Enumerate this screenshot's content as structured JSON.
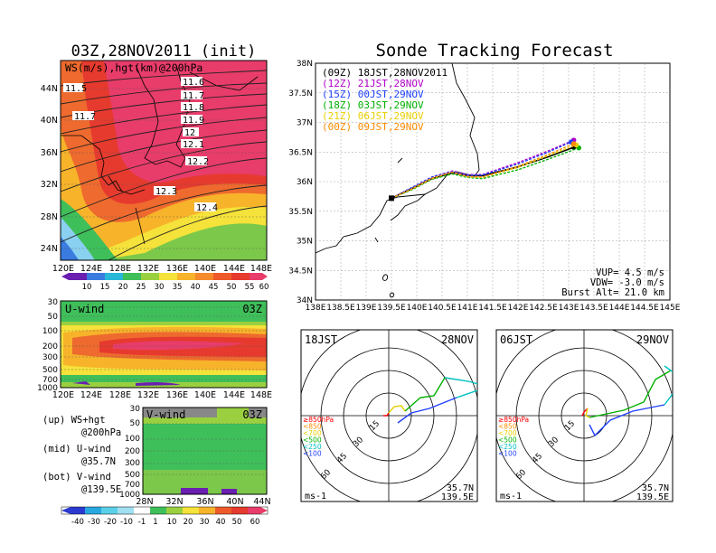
{
  "titles": {
    "left": "03Z,28NOV2011 (init)",
    "right": "Sonde Tracking Forecast"
  },
  "map": {
    "panel_label": "WS(m/s),hgt(km)@200hPa",
    "lat_labels": [
      "44N",
      "40N",
      "36N",
      "32N",
      "28N",
      "24N"
    ],
    "lon_labels": [
      "120E",
      "124E",
      "128E",
      "132E",
      "136E",
      "140E",
      "144E",
      "148E"
    ],
    "contour_labels": [
      "11.5",
      "11.6",
      "11.7",
      "11.8",
      "11.9",
      "12",
      "12.1",
      "12.2",
      "12.3",
      "12.4",
      "11.7",
      "12.3"
    ],
    "colorbar_ticks": [
      "10",
      "15",
      "20",
      "25",
      "30",
      "35",
      "40",
      "45",
      "50",
      "55",
      "60"
    ]
  },
  "uwind": {
    "label": "U-wind",
    "time": "03Z",
    "y_ticks": [
      "30",
      "50",
      "100",
      "200",
      "300",
      "500",
      "700",
      "1000"
    ],
    "x_ticks": [
      "120E",
      "124E",
      "128E",
      "132E",
      "136E",
      "140E",
      "144E",
      "148E"
    ]
  },
  "vwind": {
    "label": "V-wind",
    "time": "03Z",
    "y_ticks": [
      "30",
      "50",
      "100",
      "200",
      "300",
      "500",
      "700",
      "1000"
    ],
    "x_ticks": [
      "28N",
      "32N",
      "36N",
      "40N",
      "44N"
    ],
    "colorbar_ticks": [
      "-40",
      "-30",
      "-20",
      "-10",
      "-1",
      "1",
      "10",
      "20",
      "30",
      "40",
      "50",
      "60"
    ]
  },
  "legend_notes": [
    {
      "a": "(up) WS+hgt",
      "b": "@200hPa"
    },
    {
      "a": "(mid) U-wind",
      "b": "@35.7N"
    },
    {
      "a": "(bot) V-wind",
      "b": "@139.5E"
    }
  ],
  "track": {
    "lat_ticks": [
      "38N",
      "37.5N",
      "37N",
      "36.5N",
      "36N",
      "35.5N",
      "35N",
      "34.5N",
      "34N"
    ],
    "lon_ticks": [
      "138E",
      "138.5E",
      "139E",
      "139.5E",
      "140E",
      "140.5E",
      "141E",
      "141.5E",
      "142E",
      "142.5E",
      "143E",
      "143.5E",
      "144E",
      "144.5E",
      "145E"
    ],
    "legend": [
      {
        "label": "(09Z) 18JST,28NOV2011",
        "color": "#000000"
      },
      {
        "label": "(12Z) 21JST,28NOV",
        "color": "#b000c8"
      },
      {
        "label": "(15Z) 00JST,29NOV",
        "color": "#2040ff"
      },
      {
        "label": "(18Z) 03JST,29NOV",
        "color": "#00b000"
      },
      {
        "label": "(21Z) 06JST,29NOV",
        "color": "#e8d000"
      },
      {
        "label": "(00Z) 09JST,29NOV",
        "color": "#ff8a00"
      }
    ],
    "info": [
      "VUP= 4.5 m/s",
      "VDW= -3.0 m/s",
      "Burst Alt= 21.0 km"
    ]
  },
  "hodographs": [
    {
      "time": "18JST",
      "date": "28NOV",
      "rings": [
        "15",
        "30",
        "45",
        "60"
      ],
      "loc1": "35.7N",
      "loc2": "139.5E",
      "unit": "ms-1"
    },
    {
      "time": "06JST",
      "date": "29NOV",
      "rings": [
        "15",
        "30",
        "45",
        "60"
      ],
      "loc1": "35.7N",
      "loc2": "139.5E",
      "unit": "ms-1"
    }
  ],
  "hodo_levels": [
    {
      "label": "≥850hPa",
      "color": "#ff0000"
    },
    {
      "label": "<850",
      "color": "#ff8c00"
    },
    {
      "label": "<700",
      "color": "#e8d000"
    },
    {
      "label": "<500",
      "color": "#00b000"
    },
    {
      "label": "<250",
      "color": "#00c0c0"
    },
    {
      "label": "<100",
      "color": "#2040ff"
    }
  ],
  "chart_data": [
    {
      "type": "heatmap",
      "title": "03Z,28NOV2011 (init)",
      "variable": "WS(m/s),hgt(km)@200hPa",
      "xlim": [
        "120E",
        "149E"
      ],
      "ylim": [
        "22N",
        "47N"
      ],
      "colorbar": [
        10,
        15,
        20,
        25,
        30,
        35,
        40,
        45,
        50,
        55,
        60
      ],
      "contours_km": [
        11.5,
        11.6,
        11.7,
        11.8,
        11.9,
        12,
        12.1,
        12.2,
        12.3,
        12.4
      ]
    },
    {
      "type": "line",
      "title": "Sonde Tracking Forecast",
      "xlim": [
        138,
        145
      ],
      "ylim": [
        34,
        38
      ],
      "series": [
        {
          "name": "(09Z) 18JST,28NOV2011",
          "x": [
            139.5,
            139.9,
            140.3,
            140.7,
            141.0,
            141.3,
            142.0,
            142.6,
            143.1
          ],
          "y": [
            35.72,
            35.88,
            36.05,
            36.15,
            36.1,
            36.1,
            36.25,
            36.42,
            36.58
          ]
        },
        {
          "name": "(12Z) 21JST,28NOV",
          "x": [
            139.5,
            139.9,
            140.3,
            140.7,
            141.0,
            141.3,
            142.0,
            142.6,
            143.1
          ],
          "y": [
            35.72,
            35.9,
            36.08,
            36.18,
            36.12,
            36.12,
            36.32,
            36.52,
            36.7
          ]
        },
        {
          "name": "(15Z) 00JST,29NOV",
          "x": [
            139.5,
            139.9,
            140.3,
            140.7,
            141.0,
            141.3,
            142.0,
            142.6,
            143.05
          ],
          "y": [
            35.72,
            35.9,
            36.08,
            36.17,
            36.11,
            36.11,
            36.3,
            36.5,
            36.67
          ]
        },
        {
          "name": "(18Z) 03JST,29NOV",
          "x": [
            139.5,
            139.9,
            140.3,
            140.7,
            141.0,
            141.3,
            142.0,
            142.6,
            143.2
          ],
          "y": [
            35.72,
            35.86,
            36.04,
            36.13,
            36.07,
            36.05,
            36.2,
            36.38,
            36.57
          ]
        },
        {
          "name": "(21Z) 06JST,29NOV",
          "x": [
            139.5,
            139.9,
            140.3,
            140.7,
            141.0,
            141.3,
            142.0,
            142.6,
            143.15
          ],
          "y": [
            35.72,
            35.87,
            36.05,
            36.16,
            36.08,
            36.07,
            36.24,
            36.44,
            36.62
          ]
        },
        {
          "name": "(00Z) 09JST,29NOV",
          "x": [
            139.5,
            139.9,
            140.3,
            140.7,
            141.0,
            141.3,
            142.0,
            142.6,
            143.1
          ],
          "y": [
            35.72,
            35.88,
            36.06,
            36.16,
            36.09,
            36.08,
            36.26,
            36.46,
            36.64
          ]
        }
      ]
    },
    {
      "type": "line",
      "title": "18JST 28NOV",
      "rings_ms": [
        15,
        30,
        45,
        60
      ]
    },
    {
      "type": "line",
      "title": "06JST 29NOV",
      "rings_ms": [
        15,
        30,
        45,
        60
      ]
    }
  ]
}
